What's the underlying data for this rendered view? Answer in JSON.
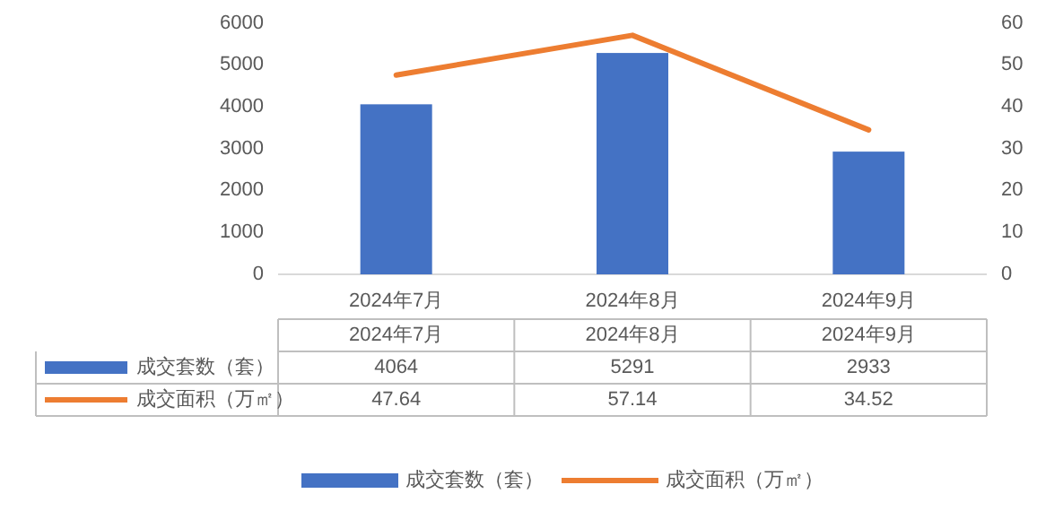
{
  "chart_data": {
    "type": "bar",
    "categories": [
      "2024年7月",
      "2024年8月",
      "2024年9月"
    ],
    "series": [
      {
        "name": "成交套数（套）",
        "color": "#4472c4",
        "values": [
          4064,
          5291,
          2933
        ]
      },
      {
        "name": "成交面积（万㎡）",
        "type": "line",
        "axis": "y2",
        "color": "#ed7d31",
        "values": [
          47.64,
          57.14,
          34.52
        ]
      }
    ],
    "ylim": [
      0,
      6000
    ],
    "yticks": [
      0,
      1000,
      2000,
      3000,
      4000,
      5000,
      6000
    ],
    "y2lim": [
      0,
      60
    ],
    "y2ticks": [
      0,
      10,
      20,
      30,
      40,
      50,
      60
    ],
    "data_labels": true,
    "legend": "bottom",
    "grid": false,
    "marker": "none",
    "line_style": "solid"
  }
}
